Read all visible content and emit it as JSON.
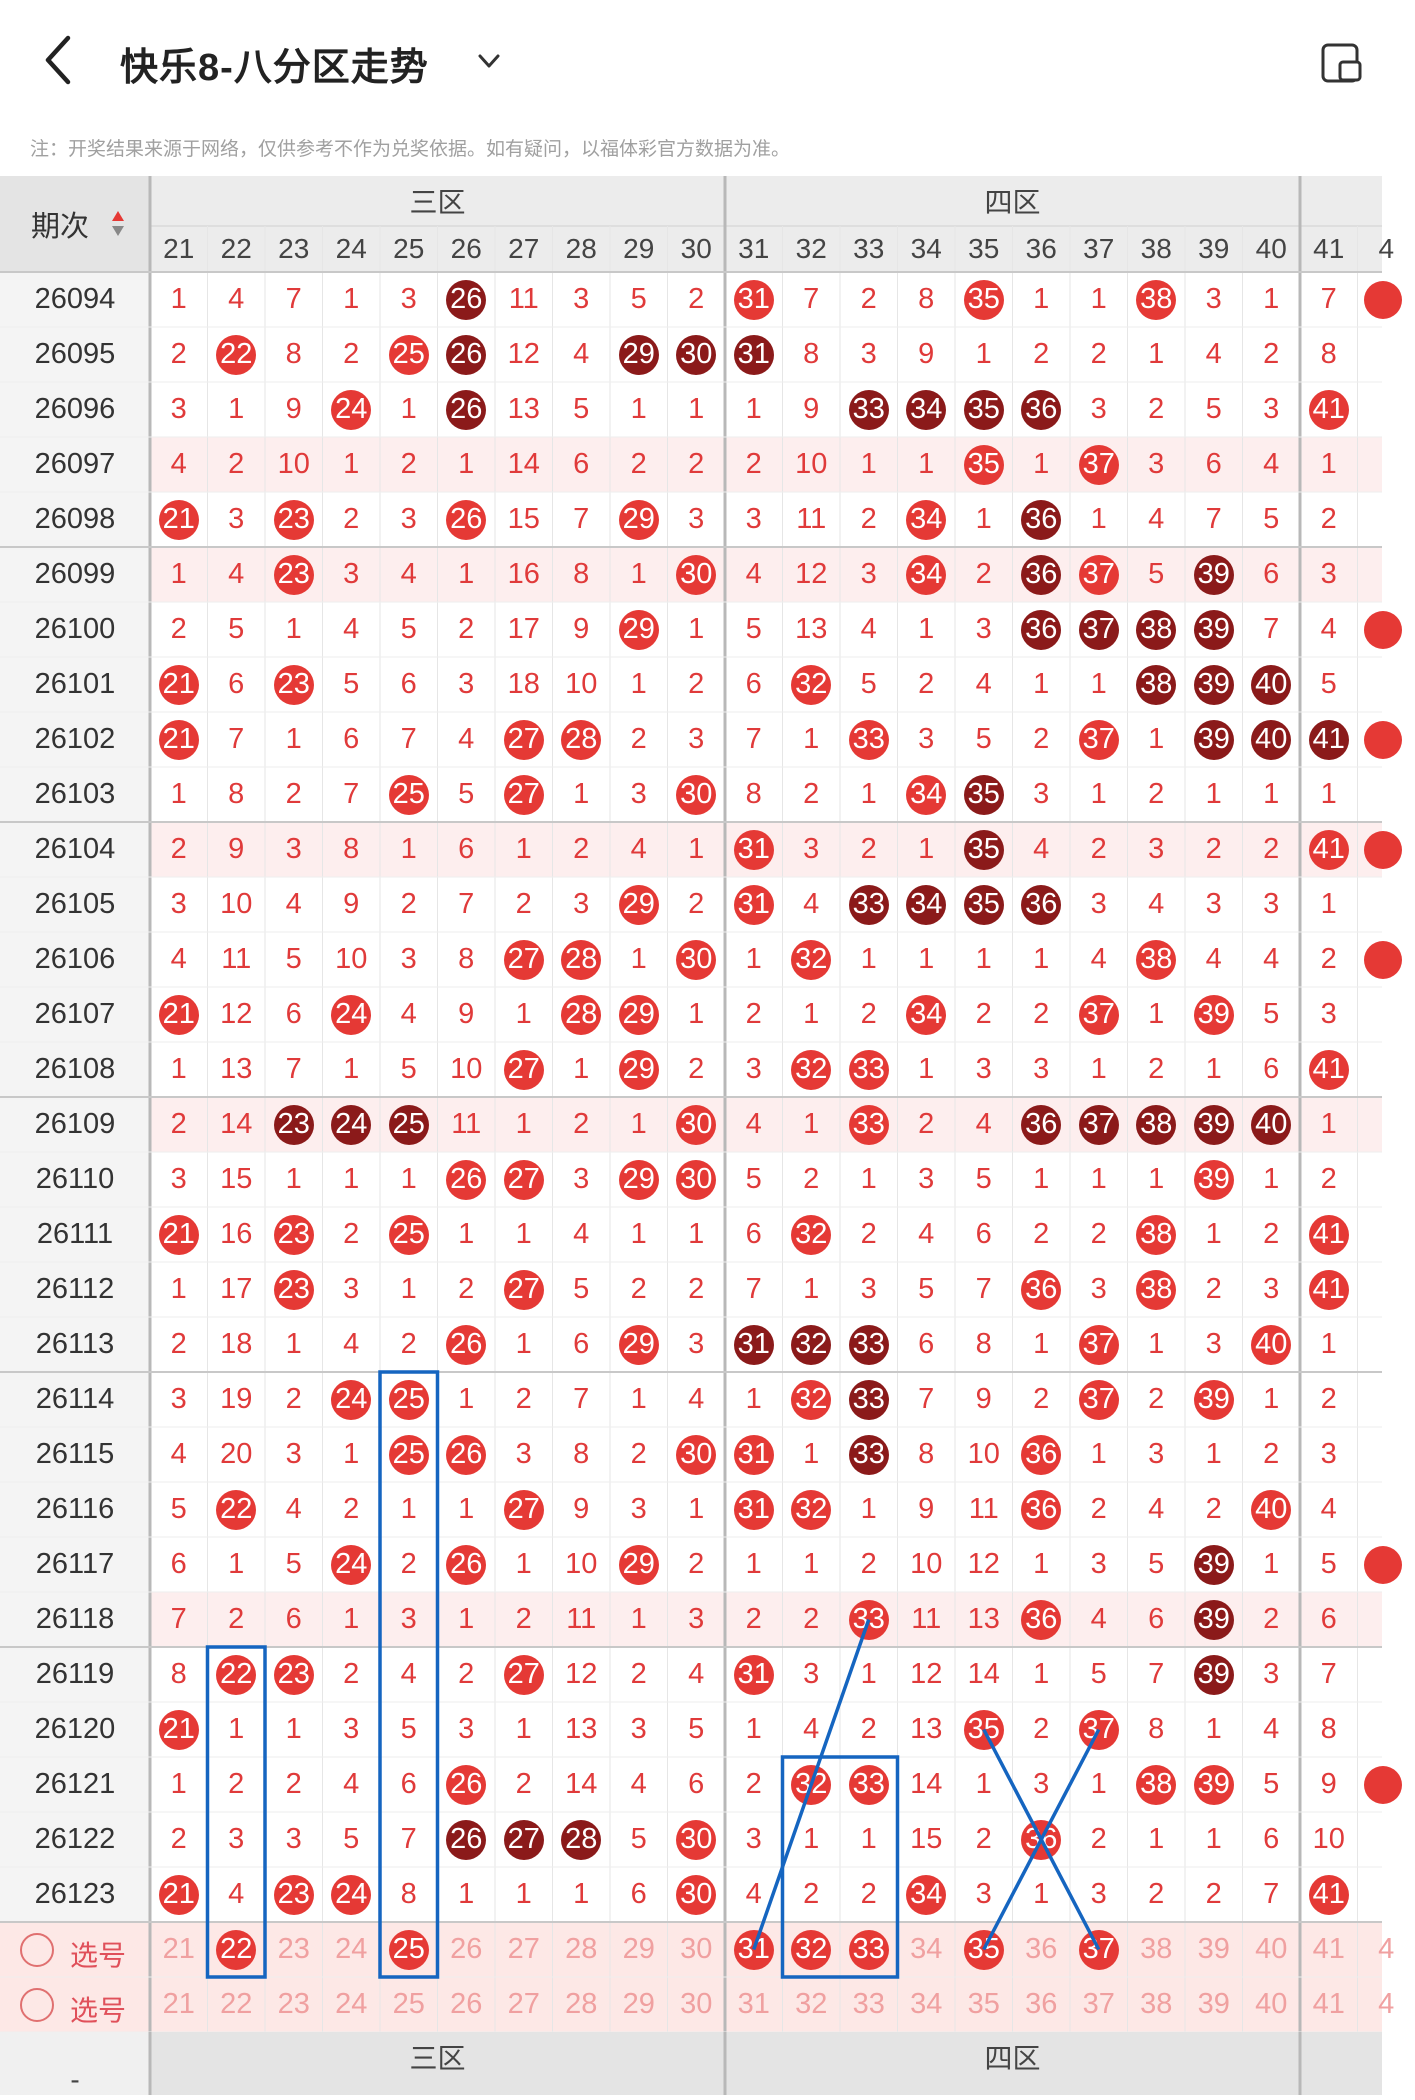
{
  "header": {
    "title": "快乐8-八分区走势"
  },
  "note": "注：开奖结果来源于网络，仅供参考不作为兑奖依据。如有疑问，以福体彩官方数据为准。",
  "table": {
    "period_label": "期次",
    "zones": [
      {
        "label": "三区",
        "start": 21,
        "end": 30
      },
      {
        "label": "四区",
        "start": 31,
        "end": 40
      }
    ],
    "next_zone_partial_cols": [
      "41",
      "4"
    ],
    "columns": [
      "21",
      "22",
      "23",
      "24",
      "25",
      "26",
      "27",
      "28",
      "29",
      "30",
      "31",
      "32",
      "33",
      "34",
      "35",
      "36",
      "37",
      "38",
      "39",
      "40",
      "41",
      "4"
    ],
    "select_label": "选号",
    "rows": [
      {
        "p": "26094",
        "v": [
          "1",
          "4",
          "7",
          "1",
          "3",
          "26",
          "11",
          "3",
          "5",
          "2",
          "31",
          "7",
          "2",
          "8",
          "35",
          "1",
          "1",
          "38",
          "3",
          "1",
          "7",
          "4"
        ],
        "h": {
          "26": "d",
          "31": "r",
          "35": "r",
          "38": "r"
        },
        "hl42": true
      },
      {
        "p": "26095",
        "v": [
          "2",
          "22",
          "8",
          "2",
          "25",
          "26",
          "12",
          "4",
          "29",
          "30",
          "31",
          "8",
          "3",
          "9",
          "1",
          "2",
          "2",
          "1",
          "4",
          "2",
          "8",
          ""
        ],
        "h": {
          "22": "r",
          "25": "r",
          "26": "d",
          "29": "d",
          "30": "d",
          "31": "d"
        }
      },
      {
        "p": "26096",
        "v": [
          "3",
          "1",
          "9",
          "24",
          "1",
          "26",
          "13",
          "5",
          "1",
          "1",
          "1",
          "9",
          "33",
          "34",
          "35",
          "36",
          "3",
          "2",
          "5",
          "3",
          "41",
          ""
        ],
        "h": {
          "24": "r",
          "26": "d",
          "33": "d",
          "34": "d",
          "35": "d",
          "36": "d",
          "41": "r"
        }
      },
      {
        "p": "26097",
        "v": [
          "4",
          "2",
          "10",
          "1",
          "2",
          "1",
          "14",
          "6",
          "2",
          "2",
          "2",
          "10",
          "1",
          "1",
          "35",
          "1",
          "37",
          "3",
          "6",
          "4",
          "1",
          ""
        ],
        "h": {
          "35": "r",
          "37": "r"
        },
        "pink": true
      },
      {
        "p": "26098",
        "v": [
          "21",
          "3",
          "23",
          "2",
          "3",
          "26",
          "15",
          "7",
          "29",
          "3",
          "3",
          "11",
          "2",
          "34",
          "1",
          "36",
          "1",
          "4",
          "7",
          "5",
          "2",
          ""
        ],
        "h": {
          "21": "r",
          "23": "r",
          "26": "r",
          "29": "r",
          "34": "r",
          "36": "d"
        }
      },
      {
        "p": "26099",
        "v": [
          "1",
          "4",
          "23",
          "3",
          "4",
          "1",
          "16",
          "8",
          "1",
          "30",
          "4",
          "12",
          "3",
          "34",
          "2",
          "36",
          "37",
          "5",
          "39",
          "6",
          "3",
          ""
        ],
        "h": {
          "23": "r",
          "30": "r",
          "34": "r",
          "36": "d",
          "37": "r",
          "39": "d"
        },
        "pink": true
      },
      {
        "p": "26100",
        "v": [
          "2",
          "5",
          "1",
          "4",
          "5",
          "2",
          "17",
          "9",
          "29",
          "1",
          "5",
          "13",
          "4",
          "1",
          "3",
          "36",
          "37",
          "38",
          "39",
          "7",
          "4",
          "4"
        ],
        "h": {
          "29": "r",
          "36": "d",
          "37": "d",
          "38": "d",
          "39": "d"
        },
        "hl42": true
      },
      {
        "p": "26101",
        "v": [
          "21",
          "6",
          "23",
          "5",
          "6",
          "3",
          "18",
          "10",
          "1",
          "2",
          "6",
          "32",
          "5",
          "2",
          "4",
          "1",
          "1",
          "38",
          "39",
          "40",
          "5",
          ""
        ],
        "h": {
          "21": "r",
          "23": "r",
          "32": "r",
          "38": "d",
          "39": "d",
          "40": "d"
        }
      },
      {
        "p": "26102",
        "v": [
          "21",
          "7",
          "1",
          "6",
          "7",
          "4",
          "27",
          "28",
          "2",
          "3",
          "7",
          "1",
          "33",
          "3",
          "5",
          "2",
          "37",
          "1",
          "39",
          "40",
          "41",
          "4"
        ],
        "h": {
          "21": "r",
          "27": "r",
          "28": "r",
          "33": "r",
          "37": "r",
          "39": "d",
          "40": "d",
          "41": "d"
        },
        "hl42": true
      },
      {
        "p": "26103",
        "v": [
          "1",
          "8",
          "2",
          "7",
          "25",
          "5",
          "27",
          "1",
          "3",
          "30",
          "8",
          "2",
          "1",
          "34",
          "35",
          "3",
          "1",
          "2",
          "1",
          "1",
          "1",
          ""
        ],
        "h": {
          "25": "r",
          "27": "r",
          "30": "r",
          "34": "r",
          "35": "d"
        }
      },
      {
        "p": "26104",
        "v": [
          "2",
          "9",
          "3",
          "8",
          "1",
          "6",
          "1",
          "2",
          "4",
          "1",
          "31",
          "3",
          "2",
          "1",
          "35",
          "4",
          "2",
          "3",
          "2",
          "2",
          "41",
          "4"
        ],
        "h": {
          "31": "r",
          "35": "d",
          "41": "r"
        },
        "pink": true,
        "hl42": true
      },
      {
        "p": "26105",
        "v": [
          "3",
          "10",
          "4",
          "9",
          "2",
          "7",
          "2",
          "3",
          "29",
          "2",
          "31",
          "4",
          "33",
          "34",
          "35",
          "36",
          "3",
          "4",
          "3",
          "3",
          "1",
          ""
        ],
        "h": {
          "29": "r",
          "31": "r",
          "33": "d",
          "34": "d",
          "35": "d",
          "36": "d"
        }
      },
      {
        "p": "26106",
        "v": [
          "4",
          "11",
          "5",
          "10",
          "3",
          "8",
          "27",
          "28",
          "1",
          "30",
          "1",
          "32",
          "1",
          "1",
          "1",
          "1",
          "4",
          "38",
          "4",
          "4",
          "2",
          "4"
        ],
        "h": {
          "27": "r",
          "28": "r",
          "30": "r",
          "32": "r",
          "38": "r"
        },
        "hl42": true
      },
      {
        "p": "26107",
        "v": [
          "21",
          "12",
          "6",
          "24",
          "4",
          "9",
          "1",
          "28",
          "29",
          "1",
          "2",
          "1",
          "2",
          "34",
          "2",
          "2",
          "37",
          "1",
          "39",
          "5",
          "3",
          ""
        ],
        "h": {
          "21": "r",
          "24": "r",
          "28": "r",
          "29": "r",
          "34": "r",
          "37": "r",
          "39": "r"
        }
      },
      {
        "p": "26108",
        "v": [
          "1",
          "13",
          "7",
          "1",
          "5",
          "10",
          "27",
          "1",
          "29",
          "2",
          "3",
          "32",
          "33",
          "1",
          "3",
          "3",
          "1",
          "2",
          "1",
          "6",
          "41",
          ""
        ],
        "h": {
          "27": "r",
          "29": "r",
          "32": "r",
          "33": "r",
          "41": "r"
        }
      },
      {
        "p": "26109",
        "v": [
          "2",
          "14",
          "23",
          "24",
          "25",
          "11",
          "1",
          "2",
          "1",
          "30",
          "4",
          "1",
          "33",
          "2",
          "4",
          "36",
          "37",
          "38",
          "39",
          "40",
          "1",
          ""
        ],
        "h": {
          "23": "d",
          "24": "d",
          "25": "d",
          "30": "r",
          "33": "r",
          "36": "d",
          "37": "d",
          "38": "d",
          "39": "d",
          "40": "d"
        },
        "pink": true
      },
      {
        "p": "26110",
        "v": [
          "3",
          "15",
          "1",
          "1",
          "1",
          "26",
          "27",
          "3",
          "29",
          "30",
          "5",
          "2",
          "1",
          "3",
          "5",
          "1",
          "1",
          "1",
          "39",
          "1",
          "2",
          ""
        ],
        "h": {
          "26": "r",
          "27": "r",
          "29": "r",
          "30": "r",
          "39": "r"
        }
      },
      {
        "p": "26111",
        "v": [
          "21",
          "16",
          "23",
          "2",
          "25",
          "1",
          "1",
          "4",
          "1",
          "1",
          "6",
          "32",
          "2",
          "4",
          "6",
          "2",
          "2",
          "38",
          "1",
          "2",
          "41",
          ""
        ],
        "h": {
          "21": "r",
          "23": "r",
          "25": "r",
          "32": "r",
          "38": "r",
          "41": "r"
        }
      },
      {
        "p": "26112",
        "v": [
          "1",
          "17",
          "23",
          "3",
          "1",
          "2",
          "27",
          "5",
          "2",
          "2",
          "7",
          "1",
          "3",
          "5",
          "7",
          "36",
          "3",
          "38",
          "2",
          "3",
          "41",
          ""
        ],
        "h": {
          "23": "r",
          "27": "r",
          "36": "r",
          "38": "r",
          "41": "r"
        }
      },
      {
        "p": "26113",
        "v": [
          "2",
          "18",
          "1",
          "4",
          "2",
          "26",
          "1",
          "6",
          "29",
          "3",
          "31",
          "32",
          "33",
          "6",
          "8",
          "1",
          "37",
          "1",
          "3",
          "40",
          "1",
          ""
        ],
        "h": {
          "26": "r",
          "29": "r",
          "31": "d",
          "32": "d",
          "33": "d",
          "37": "r",
          "40": "r"
        }
      },
      {
        "p": "26114",
        "v": [
          "3",
          "19",
          "2",
          "24",
          "25",
          "1",
          "2",
          "7",
          "1",
          "4",
          "1",
          "32",
          "33",
          "7",
          "9",
          "2",
          "37",
          "2",
          "39",
          "1",
          "2",
          ""
        ],
        "h": {
          "24": "r",
          "25": "r",
          "32": "r",
          "33": "d",
          "37": "r",
          "39": "r"
        }
      },
      {
        "p": "26115",
        "v": [
          "4",
          "20",
          "3",
          "1",
          "25",
          "26",
          "3",
          "8",
          "2",
          "30",
          "31",
          "1",
          "33",
          "8",
          "10",
          "36",
          "1",
          "3",
          "1",
          "2",
          "3",
          ""
        ],
        "h": {
          "25": "r",
          "26": "r",
          "30": "r",
          "31": "r",
          "33": "d",
          "36": "r"
        }
      },
      {
        "p": "26116",
        "v": [
          "5",
          "22",
          "4",
          "2",
          "1",
          "1",
          "27",
          "9",
          "3",
          "1",
          "31",
          "32",
          "1",
          "9",
          "11",
          "36",
          "2",
          "4",
          "2",
          "40",
          "4",
          ""
        ],
        "h": {
          "22": "r",
          "27": "r",
          "31": "r",
          "32": "r",
          "36": "r",
          "40": "r"
        }
      },
      {
        "p": "26117",
        "v": [
          "6",
          "1",
          "5",
          "24",
          "2",
          "26",
          "1",
          "10",
          "29",
          "2",
          "1",
          "1",
          "2",
          "10",
          "12",
          "1",
          "3",
          "5",
          "39",
          "1",
          "5",
          "4"
        ],
        "h": {
          "24": "r",
          "26": "r",
          "29": "r",
          "39": "d"
        },
        "hl42": true
      },
      {
        "p": "26118",
        "v": [
          "7",
          "2",
          "6",
          "1",
          "3",
          "1",
          "2",
          "11",
          "1",
          "3",
          "2",
          "2",
          "33",
          "11",
          "13",
          "36",
          "4",
          "6",
          "39",
          "2",
          "6",
          ""
        ],
        "h": {
          "33": "r",
          "36": "r",
          "39": "d"
        },
        "pink": true
      },
      {
        "p": "26119",
        "v": [
          "8",
          "22",
          "23",
          "2",
          "4",
          "2",
          "27",
          "12",
          "2",
          "4",
          "31",
          "3",
          "1",
          "12",
          "14",
          "1",
          "5",
          "7",
          "39",
          "3",
          "7",
          ""
        ],
        "h": {
          "22": "r",
          "23": "r",
          "27": "r",
          "31": "r",
          "39": "d"
        }
      },
      {
        "p": "26120",
        "v": [
          "21",
          "1",
          "1",
          "3",
          "5",
          "3",
          "1",
          "13",
          "3",
          "5",
          "1",
          "4",
          "2",
          "13",
          "35",
          "2",
          "37",
          "8",
          "1",
          "4",
          "8",
          ""
        ],
        "h": {
          "21": "r",
          "35": "r",
          "37": "r"
        }
      },
      {
        "p": "26121",
        "v": [
          "1",
          "2",
          "2",
          "4",
          "6",
          "26",
          "2",
          "14",
          "4",
          "6",
          "2",
          "32",
          "33",
          "14",
          "1",
          "3",
          "1",
          "38",
          "39",
          "5",
          "9",
          "4"
        ],
        "h": {
          "26": "r",
          "32": "r",
          "33": "r",
          "38": "r",
          "39": "r"
        },
        "hl42": true
      },
      {
        "p": "26122",
        "v": [
          "2",
          "3",
          "3",
          "5",
          "7",
          "26",
          "27",
          "28",
          "5",
          "30",
          "3",
          "1",
          "1",
          "15",
          "2",
          "36",
          "2",
          "1",
          "1",
          "6",
          "10",
          ""
        ],
        "h": {
          "26": "d",
          "27": "d",
          "28": "d",
          "30": "r",
          "36": "r"
        }
      },
      {
        "p": "26123",
        "v": [
          "21",
          "4",
          "23",
          "24",
          "8",
          "1",
          "1",
          "1",
          "6",
          "30",
          "4",
          "2",
          "2",
          "34",
          "3",
          "1",
          "3",
          "2",
          "2",
          "7",
          "41",
          ""
        ],
        "h": {
          "21": "r",
          "23": "r",
          "24": "r",
          "30": "r",
          "34": "r",
          "41": "r"
        }
      }
    ],
    "select_row1_balls": [
      "22",
      "25",
      "31",
      "32",
      "33",
      "35",
      "37"
    ]
  },
  "footer": {
    "zones": [
      "三区",
      "四区"
    ],
    "period_mark": "-"
  }
}
